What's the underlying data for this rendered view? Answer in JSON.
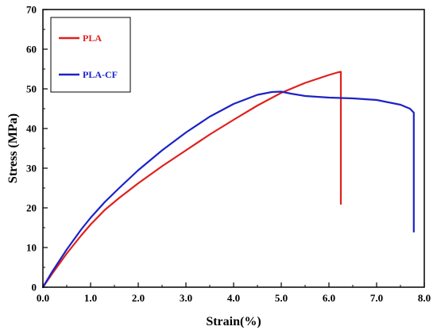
{
  "chart_data": {
    "type": "line",
    "title": "",
    "xlabel": "Strain(%)",
    "ylabel": "Stress (MPa)",
    "xlim": [
      0,
      8
    ],
    "ylim": [
      0,
      70
    ],
    "x_ticks": [
      "0.0",
      "1.0",
      "2.0",
      "3.0",
      "4.0",
      "5.0",
      "6.0",
      "7.0",
      "8.0"
    ],
    "y_ticks": [
      "0",
      "10",
      "20",
      "30",
      "40",
      "50",
      "60",
      "70"
    ],
    "grid": false,
    "legend_position": "top-left",
    "series": [
      {
        "name": "PLA",
        "color": "#e0201c",
        "x": [
          0.0,
          0.2,
          0.5,
          0.8,
          1.0,
          1.3,
          1.6,
          2.0,
          2.5,
          3.0,
          3.5,
          4.0,
          4.5,
          5.0,
          5.5,
          5.8,
          6.0,
          6.2,
          6.25,
          6.25,
          6.25
        ],
        "y": [
          0,
          3.5,
          8.5,
          13,
          15.8,
          19.5,
          22.5,
          26.2,
          30.5,
          34.5,
          38.5,
          42.2,
          45.8,
          49.0,
          51.5,
          52.7,
          53.5,
          54.2,
          54.3,
          40.0,
          21.0
        ]
      },
      {
        "name": "PLA-CF",
        "color": "#1c22c8",
        "x": [
          0.0,
          0.2,
          0.5,
          0.8,
          1.0,
          1.3,
          1.6,
          2.0,
          2.5,
          3.0,
          3.5,
          4.0,
          4.5,
          4.8,
          5.0,
          5.2,
          5.5,
          6.0,
          6.5,
          7.0,
          7.5,
          7.7,
          7.78,
          7.78,
          7.78
        ],
        "y": [
          0,
          4,
          9.5,
          14.5,
          17.5,
          21.5,
          25,
          29.5,
          34.5,
          39,
          43,
          46.2,
          48.5,
          49.2,
          49.3,
          48.8,
          48.2,
          47.8,
          47.6,
          47.2,
          46.0,
          45.0,
          44.0,
          30.0,
          14.0
        ]
      }
    ]
  }
}
